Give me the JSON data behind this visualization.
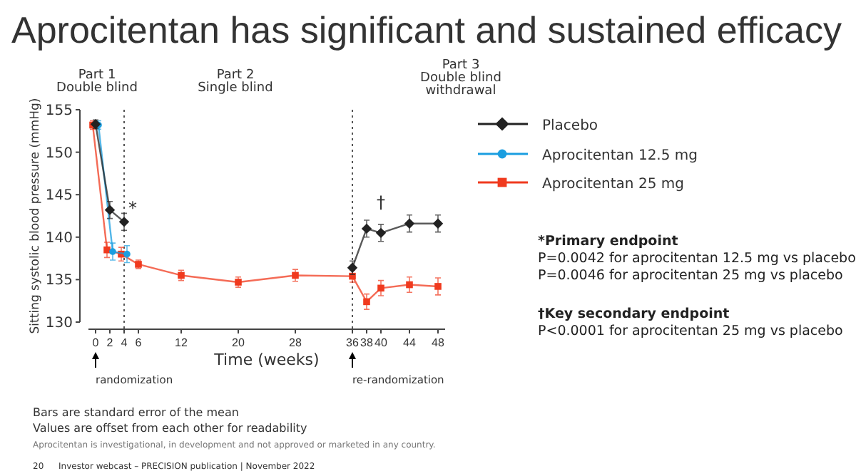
{
  "chart_data": {
    "type": "line",
    "title": "Aprocitentan has significant and sustained efficacy",
    "xlabel": "Time (weeks)",
    "ylabel": "Sitting systolic blood pressure (mmHg)",
    "xlim": [
      -1,
      49
    ],
    "xticks": [
      0,
      2,
      4,
      6,
      12,
      20,
      28,
      36,
      38,
      40,
      44,
      48
    ],
    "ylim": [
      130,
      155
    ],
    "yticks": [
      130,
      135,
      140,
      145,
      150,
      155
    ],
    "grid": false,
    "legend": "right",
    "line_style": "solid",
    "series": [
      {
        "name": "Placebo",
        "color": "#222222",
        "marker": "diamond",
        "x": [
          0,
          2,
          4,
          6,
          36,
          38,
          40,
          44,
          48
        ],
        "values": [
          153.3,
          143.2,
          141.8,
          null,
          136.4,
          141.0,
          140.5,
          141.6,
          141.6
        ],
        "errors": [
          0.5,
          1.0,
          1.0,
          null,
          0.8,
          1.0,
          1.0,
          1.0,
          1.0
        ]
      },
      {
        "name": "Aprocitentan 12.5 mg",
        "color": "#1a9ee0",
        "marker": "circle",
        "x": [
          0.4,
          2.4,
          4.4
        ],
        "values": [
          153.2,
          138.3,
          138.0
        ],
        "errors": [
          0.5,
          1.0,
          1.0
        ]
      },
      {
        "name": "Aprocitentan 25 mg",
        "color": "#f03a1e",
        "marker": "square",
        "x": [
          -0.4,
          1.6,
          3.6,
          6,
          12,
          20,
          28,
          36,
          38,
          40,
          44,
          48
        ],
        "values": [
          153.2,
          138.5,
          138.0,
          136.8,
          135.5,
          134.7,
          135.5,
          135.4,
          132.4,
          134.0,
          134.4,
          134.2
        ],
        "errors": [
          0.5,
          0.9,
          0.8,
          0.5,
          0.6,
          0.6,
          0.7,
          0.7,
          0.9,
          0.9,
          0.9,
          1.0
        ]
      }
    ],
    "ref_lines": [
      {
        "axis": "x",
        "value": 4,
        "line_style": "dotted",
        "color": "#555555"
      },
      {
        "axis": "x",
        "value": 36,
        "line_style": "dotted",
        "color": "#555555"
      }
    ],
    "annotations": [
      "Part 1",
      "Double blind",
      "Part 2",
      "Single blind",
      "Part 3",
      "Double blind",
      "withdrawal",
      "*",
      "†",
      "randomization",
      "re-randomization",
      "*Primary endpoint",
      "P=0.0042 for aprocitentan 12.5 mg vs placebo",
      "P=0.0046 for aprocitentan 25 mg vs placebo",
      "†Key secondary endpoint",
      "P<0.0001 for aprocitentan 25 mg vs placebo",
      "Bars are standard error of the mean",
      "Values are offset from each other for readability",
      "Aprocitentan is investigational, in development and not approved or marketed in any country.",
      "20",
      "Investor webcast – PRECISION publication | November 2022"
    ]
  }
}
